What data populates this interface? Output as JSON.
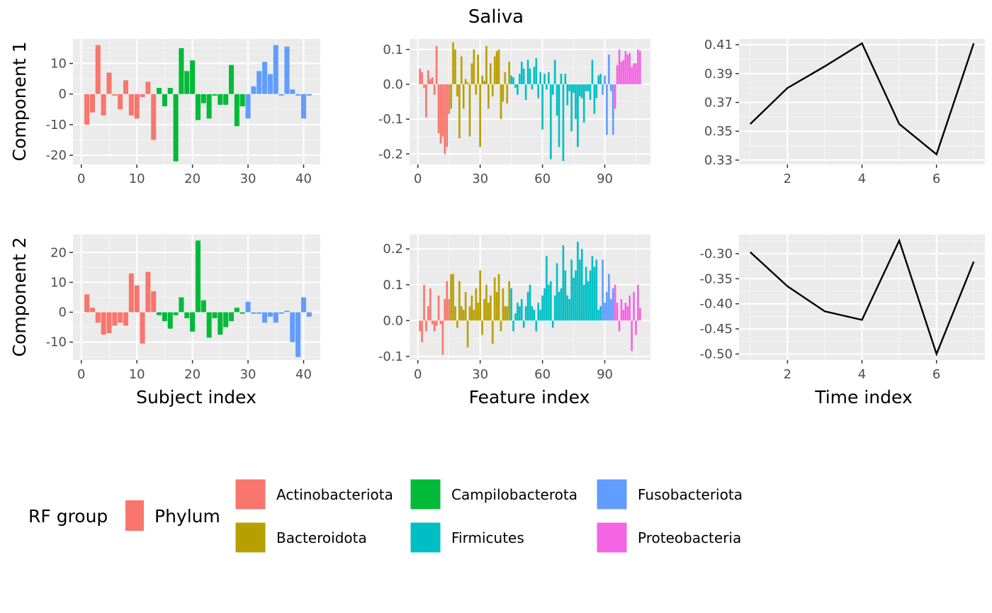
{
  "title": "Saliva",
  "row_labels": [
    "Component 1",
    "Component 2"
  ],
  "col_labels": [
    "Subject index",
    "Feature index",
    "Time index"
  ],
  "legend": {
    "rf_group_title": "RF group",
    "phylum_title": "Phylum",
    "items": [
      {
        "name": "Actinobacteriota",
        "color": "#F8766D"
      },
      {
        "name": "Bacteroidota",
        "color": "#B79F00"
      },
      {
        "name": "Campilobacterota",
        "color": "#00BA38"
      },
      {
        "name": "Firmicutes",
        "color": "#00BFC4"
      },
      {
        "name": "Fusobacteriota",
        "color": "#619CFF"
      },
      {
        "name": "Proteobacteria",
        "color": "#F564E3"
      }
    ]
  },
  "chart_data": [
    {
      "type": "bar",
      "row": 0,
      "col": 0,
      "xlim": [
        -1.5,
        43
      ],
      "ylim": [
        -23,
        18
      ],
      "xticks": [
        0,
        10,
        20,
        30,
        40
      ],
      "yticks": [
        -20,
        -10,
        0,
        10
      ],
      "x": [
        1,
        2,
        3,
        4,
        5,
        6,
        7,
        8,
        9,
        10,
        11,
        12,
        13,
        14,
        15,
        16,
        17,
        18,
        19,
        20,
        21,
        22,
        23,
        24,
        25,
        26,
        27,
        28,
        29,
        30,
        31,
        32,
        33,
        34,
        35,
        36,
        37,
        38,
        39,
        40,
        41
      ],
      "values": [
        -10,
        -6,
        16,
        -7,
        7,
        -0.5,
        -5,
        4.5,
        -7,
        -8,
        -1,
        4,
        -15,
        2,
        -4,
        2,
        -22,
        15,
        7.5,
        11,
        -8.5,
        -3,
        -8,
        -0.5,
        -3.5,
        -3.5,
        9.5,
        -10.5,
        -4,
        -8,
        2.5,
        7.5,
        10.5,
        6.5,
        16,
        -0.5,
        15.5,
        1.5,
        -0.5,
        -8,
        -0.5
      ],
      "groups": [
        0,
        0,
        0,
        0,
        0,
        0,
        0,
        0,
        0,
        0,
        0,
        0,
        0,
        2,
        2,
        2,
        2,
        2,
        2,
        2,
        2,
        2,
        2,
        2,
        2,
        2,
        2,
        2,
        2,
        4,
        4,
        4,
        4,
        4,
        4,
        4,
        4,
        4,
        4,
        4,
        4
      ]
    },
    {
      "type": "bar",
      "row": 0,
      "col": 1,
      "xlim": [
        -4,
        112
      ],
      "ylim": [
        -0.23,
        0.13
      ],
      "xticks": [
        0,
        30,
        60,
        90
      ],
      "yticks": [
        -0.2,
        -0.1,
        0.0,
        0.1
      ],
      "x": [
        1,
        2,
        3,
        4,
        5,
        6,
        7,
        8,
        9,
        10,
        11,
        12,
        13,
        14,
        15,
        16,
        17,
        18,
        19,
        20,
        21,
        22,
        23,
        24,
        25,
        26,
        27,
        28,
        29,
        30,
        31,
        32,
        33,
        34,
        35,
        36,
        37,
        38,
        39,
        40,
        41,
        42,
        43,
        44,
        45,
        46,
        47,
        48,
        49,
        50,
        51,
        52,
        53,
        54,
        55,
        56,
        57,
        58,
        59,
        60,
        61,
        62,
        63,
        64,
        65,
        66,
        67,
        68,
        69,
        70,
        71,
        72,
        73,
        74,
        75,
        76,
        77,
        78,
        79,
        80,
        81,
        82,
        83,
        84,
        85,
        86,
        87,
        88,
        89,
        90,
        91,
        92,
        93,
        94,
        95,
        96,
        97,
        98,
        99,
        100,
        101,
        102,
        103,
        104,
        105,
        106,
        107
      ],
      "values": [
        0.045,
        0.035,
        -0.01,
        -0.095,
        0.04,
        0.015,
        0.02,
        -0.03,
        0.11,
        -0.14,
        -0.17,
        -0.15,
        -0.2,
        -0.18,
        -0.085,
        -0.07,
        0.12,
        0.1,
        -0.035,
        -0.155,
        0.08,
        -0.07,
        0.015,
        0.005,
        -0.15,
        0.06,
        0.1,
        -0.03,
        0.085,
        -0.18,
        0.025,
        0.01,
        0.11,
        -0.07,
        0.06,
        -0.035,
        0.08,
        0.095,
        0.1,
        -0.1,
        -0.05,
        0.035,
        -0.055,
        0.065,
        0.025,
        0.02,
        -0.01,
        -0.03,
        0.03,
        0.065,
        0.045,
        -0.045,
        0.07,
        0.045,
        -0.015,
        0.05,
        0.075,
        -0.04,
        0.035,
        -0.13,
        0.03,
        -0.015,
        0.035,
        -0.215,
        -0.03,
        0.07,
        -0.09,
        -0.18,
        0.03,
        -0.22,
        0.03,
        -0.06,
        -0.02,
        -0.135,
        -0.025,
        -0.1,
        -0.18,
        -0.035,
        -0.04,
        -0.11,
        -0.02,
        -0.02,
        -0.045,
        0.07,
        -0.085,
        -0.04,
        0.025,
        0.03,
        -0.03,
        0.025,
        -0.145,
        0.085,
        -0.02,
        -0.145,
        -0.07,
        0.055,
        0.1,
        0.065,
        0.07,
        0.095,
        0.085,
        0.09,
        0.05,
        0.06,
        0.06,
        0.1,
        0.095
      ],
      "groups": [
        0,
        0,
        0,
        0,
        0,
        0,
        0,
        0,
        0,
        0,
        0,
        0,
        0,
        0,
        0,
        1,
        1,
        1,
        1,
        1,
        1,
        1,
        1,
        1,
        1,
        1,
        1,
        1,
        1,
        1,
        1,
        1,
        1,
        1,
        1,
        1,
        1,
        1,
        1,
        1,
        1,
        1,
        1,
        1,
        3,
        3,
        3,
        3,
        3,
        3,
        3,
        3,
        3,
        3,
        3,
        3,
        3,
        3,
        3,
        3,
        3,
        3,
        3,
        3,
        3,
        3,
        3,
        3,
        3,
        3,
        3,
        3,
        3,
        3,
        3,
        3,
        3,
        3,
        3,
        3,
        3,
        3,
        3,
        3,
        3,
        3,
        3,
        3,
        4,
        4,
        4,
        4,
        4,
        4,
        5,
        5,
        5,
        5,
        5,
        5,
        5,
        5,
        5,
        5,
        5,
        5,
        5
      ]
    },
    {
      "type": "line",
      "row": 0,
      "col": 2,
      "xlim": [
        0.7,
        7.3
      ],
      "ylim": [
        0.327,
        0.414
      ],
      "xticks": [
        2,
        4,
        6
      ],
      "yticks": [
        0.33,
        0.35,
        0.37,
        0.39,
        0.41
      ],
      "x": [
        1,
        2,
        3,
        4,
        5,
        6,
        7
      ],
      "values": [
        0.355,
        0.38,
        0.395,
        0.411,
        0.355,
        0.334,
        0.411
      ]
    },
    {
      "type": "bar",
      "row": 1,
      "col": 0,
      "xlim": [
        -1.5,
        43
      ],
      "ylim": [
        -16,
        26
      ],
      "xticks": [
        0,
        10,
        20,
        30,
        40
      ],
      "yticks": [
        -10,
        0,
        10,
        20
      ],
      "x": [
        1,
        2,
        3,
        4,
        5,
        6,
        7,
        8,
        9,
        10,
        11,
        12,
        13,
        14,
        15,
        16,
        17,
        18,
        19,
        20,
        21,
        22,
        23,
        24,
        25,
        26,
        27,
        28,
        29,
        30,
        31,
        32,
        33,
        34,
        35,
        36,
        37,
        38,
        39,
        40,
        41
      ],
      "values": [
        6,
        1.5,
        -3.5,
        -7.5,
        -7,
        -4.5,
        -3.5,
        -4.5,
        13,
        9,
        -10.5,
        13.5,
        7,
        -1,
        -3,
        -5.5,
        -1,
        5,
        -2,
        -6.5,
        24,
        4,
        -8.5,
        -2,
        -7.5,
        -5,
        -3,
        1.5,
        -0.5,
        3.5,
        -0.5,
        -0.5,
        -3.5,
        -1.5,
        -3.5,
        -0.5,
        0.5,
        -10,
        -15,
        5,
        -1.5
      ],
      "groups": [
        0,
        0,
        0,
        0,
        0,
        0,
        0,
        0,
        0,
        0,
        0,
        0,
        0,
        2,
        2,
        2,
        2,
        2,
        2,
        2,
        2,
        2,
        2,
        2,
        2,
        2,
        2,
        2,
        2,
        4,
        4,
        4,
        4,
        4,
        4,
        4,
        4,
        4,
        4,
        4,
        4
      ]
    },
    {
      "type": "bar",
      "row": 1,
      "col": 1,
      "xlim": [
        -4,
        112
      ],
      "ylim": [
        -0.11,
        0.24
      ],
      "xticks": [
        0,
        30,
        60,
        90
      ],
      "yticks": [
        -0.1,
        0.0,
        0.1,
        0.2
      ],
      "x": [
        1,
        2,
        3,
        4,
        5,
        6,
        7,
        8,
        9,
        10,
        11,
        12,
        13,
        14,
        15,
        16,
        17,
        18,
        19,
        20,
        21,
        22,
        23,
        24,
        25,
        26,
        27,
        28,
        29,
        30,
        31,
        32,
        33,
        34,
        35,
        36,
        37,
        38,
        39,
        40,
        41,
        42,
        43,
        44,
        45,
        46,
        47,
        48,
        49,
        50,
        51,
        52,
        53,
        54,
        55,
        56,
        57,
        58,
        59,
        60,
        61,
        62,
        63,
        64,
        65,
        66,
        67,
        68,
        69,
        70,
        71,
        72,
        73,
        74,
        75,
        76,
        77,
        78,
        79,
        80,
        81,
        82,
        83,
        84,
        85,
        86,
        87,
        88,
        89,
        90,
        91,
        92,
        93,
        94,
        95,
        96,
        97,
        98,
        99,
        100,
        101,
        102,
        103,
        104,
        105,
        106,
        107
      ],
      "values": [
        -0.03,
        -0.06,
        0.1,
        -0.03,
        0.04,
        0.09,
        -0.01,
        -0.03,
        -0.015,
        0.07,
        -0.01,
        -0.095,
        0.06,
        0.11,
        0.06,
        0.13,
        0.13,
        0.04,
        -0.02,
        0.11,
        0.04,
        0.03,
        0.08,
        -0.075,
        0.04,
        0.07,
        0.03,
        0.09,
        0.05,
        0.14,
        -0.04,
        0.06,
        0.1,
        0.05,
        0.07,
        -0.065,
        0.12,
        0.08,
        0.13,
        -0.03,
        0.09,
        0.04,
        0.04,
        0.11,
        0.09,
        -0.03,
        0.02,
        0.05,
        0.04,
        0.06,
        -0.02,
        0.04,
        0.08,
        0.1,
        0.04,
        0.03,
        -0.03,
        0.05,
        0.03,
        0.07,
        0.09,
        0.18,
        0.1,
        0.11,
        -0.02,
        0.07,
        0.16,
        0.08,
        0.09,
        0.21,
        0.14,
        0.07,
        0.06,
        0.17,
        0.12,
        0.14,
        0.22,
        0.17,
        0.2,
        0.1,
        0.15,
        0.11,
        0.14,
        0.18,
        0.15,
        0.17,
        0.03,
        0.04,
        0.17,
        0.05,
        0.08,
        0.13,
        0.06,
        0.09,
        0.1,
        0.05,
        -0.03,
        0.06,
        0.03,
        0.05,
        0.04,
        0.07,
        -0.085,
        0.08,
        -0.04,
        0.1,
        0.035
      ],
      "groups": [
        0,
        0,
        0,
        0,
        0,
        0,
        0,
        0,
        0,
        0,
        0,
        0,
        0,
        0,
        0,
        1,
        1,
        1,
        1,
        1,
        1,
        1,
        1,
        1,
        1,
        1,
        1,
        1,
        1,
        1,
        1,
        1,
        1,
        1,
        1,
        1,
        1,
        1,
        1,
        1,
        1,
        1,
        1,
        1,
        3,
        3,
        3,
        3,
        3,
        3,
        3,
        3,
        3,
        3,
        3,
        3,
        3,
        3,
        3,
        3,
        3,
        3,
        3,
        3,
        3,
        3,
        3,
        3,
        3,
        3,
        3,
        3,
        3,
        3,
        3,
        3,
        3,
        3,
        3,
        3,
        3,
        3,
        3,
        3,
        3,
        3,
        3,
        3,
        4,
        4,
        4,
        4,
        4,
        4,
        5,
        5,
        5,
        5,
        5,
        5,
        5,
        5,
        5,
        5,
        5,
        5,
        5
      ]
    },
    {
      "type": "line",
      "row": 1,
      "col": 2,
      "xlim": [
        0.7,
        7.3
      ],
      "ylim": [
        -0.512,
        -0.262
      ],
      "xticks": [
        2,
        4,
        6
      ],
      "yticks": [
        -0.5,
        -0.45,
        -0.4,
        -0.35,
        -0.3
      ],
      "x": [
        1,
        2,
        3,
        4,
        5,
        6,
        7
      ],
      "values": [
        -0.297,
        -0.365,
        -0.415,
        -0.432,
        -0.274,
        -0.5,
        -0.316
      ]
    }
  ]
}
